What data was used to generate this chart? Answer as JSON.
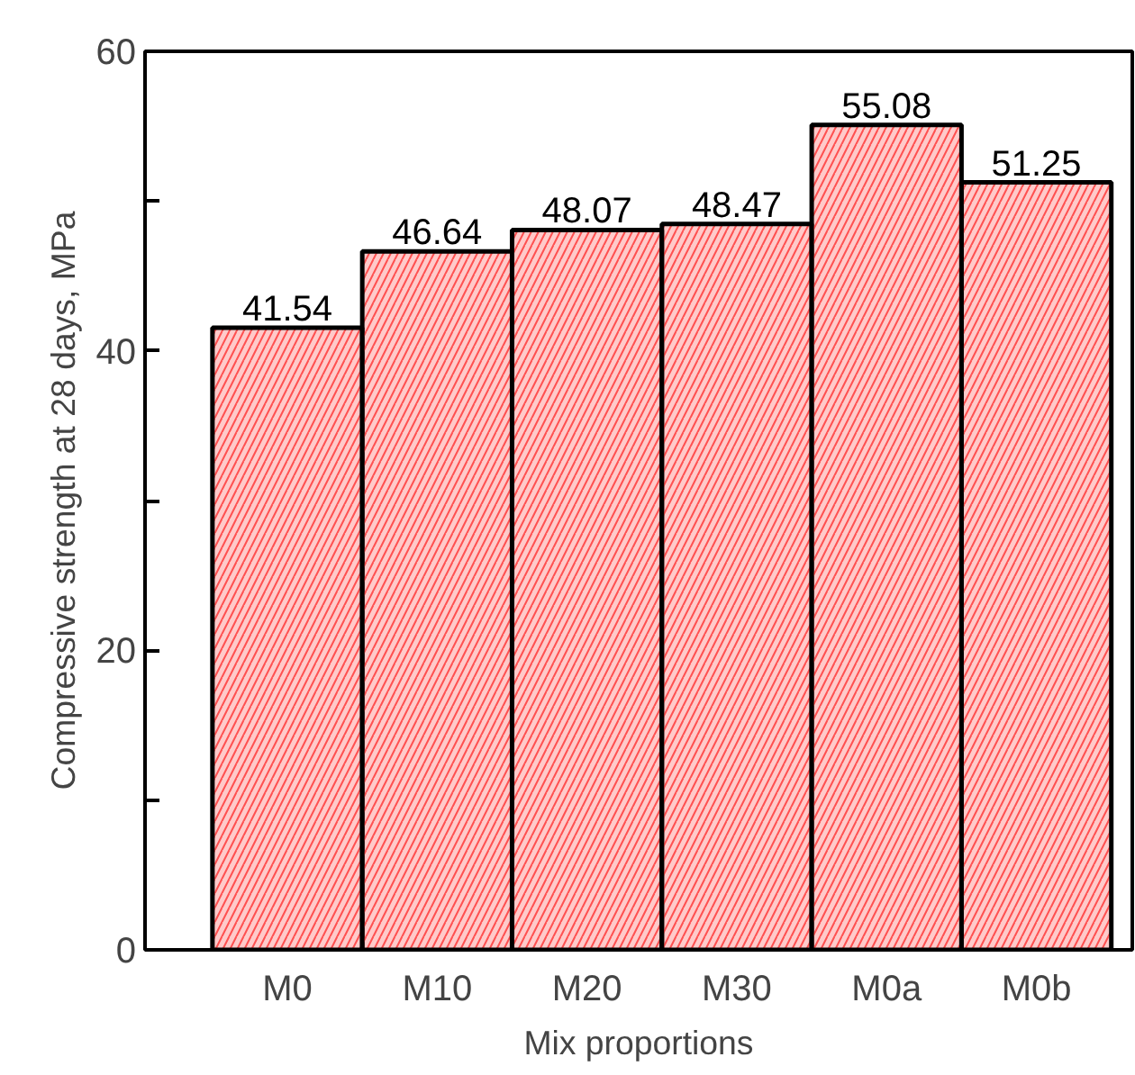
{
  "chart_data": {
    "type": "bar",
    "xlabel": "Mix proportions",
    "ylabel": "Compressive strength at 28 days, MPa",
    "categories": [
      "M0",
      "M10",
      "M20",
      "M30",
      "M0a",
      "M0b"
    ],
    "values": [
      41.54,
      46.64,
      48.07,
      48.47,
      55.08,
      51.25
    ],
    "color": "#ff5050",
    "ylim": [
      0,
      60
    ],
    "yticks": [
      0,
      {
        "value": 10,
        "label": null
      },
      20,
      {
        "value": 30,
        "label": null
      },
      40,
      {
        "value": 50,
        "label": null
      },
      60
    ],
    "data_labels": true,
    "grid": false
  }
}
